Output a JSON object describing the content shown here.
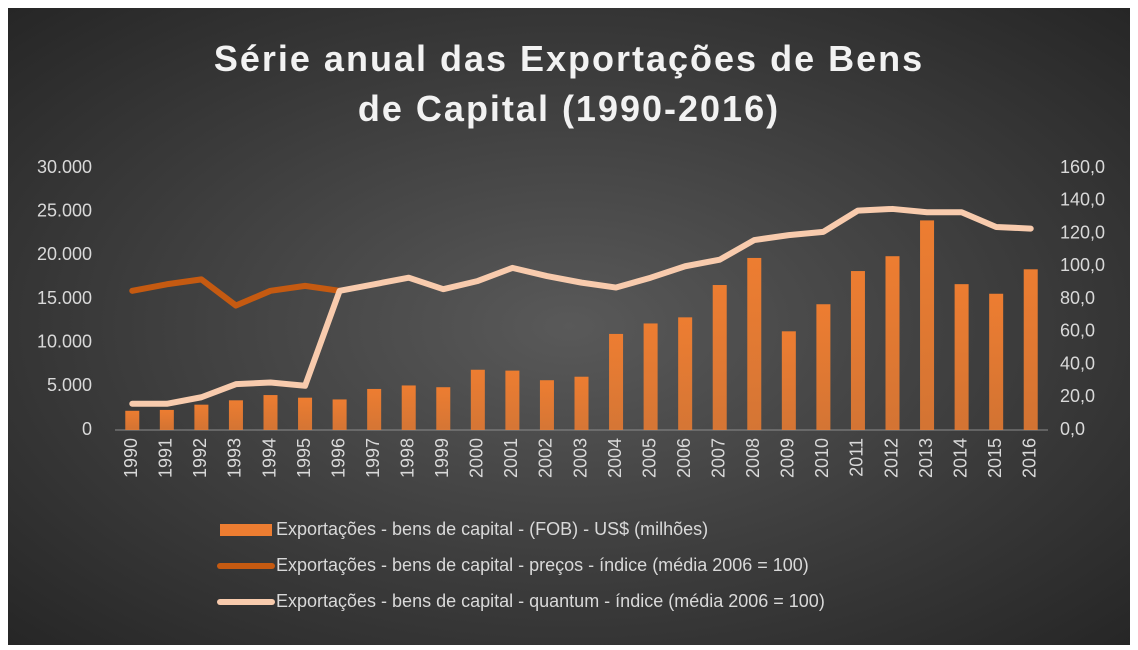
{
  "chart_data": {
    "type": "bar-line",
    "title": "Série anual das Exportações de Bens de Capital (1990-2016)",
    "categories": [
      "1990",
      "1991",
      "1992",
      "1993",
      "1994",
      "1995",
      "1996",
      "1997",
      "1998",
      "1999",
      "2000",
      "2001",
      "2002",
      "2003",
      "2004",
      "2005",
      "2006",
      "2007",
      "2008",
      "2009",
      "2010",
      "2011",
      "2012",
      "2013",
      "2014",
      "2015",
      "2016"
    ],
    "series": [
      {
        "name": "Exportações - bens de capital - (FOB) - US$ (milhões)",
        "type": "bar",
        "color": "#ed7d31",
        "values": [
          2200,
          2300,
          2900,
          3400,
          4000,
          3700,
          3500,
          4700,
          5100,
          4900,
          6900,
          6800,
          5700,
          6100,
          11000,
          12200,
          12900,
          16600,
          19700,
          11300,
          14400,
          18200,
          19900,
          24000,
          16700,
          15600,
          18400
        ]
      },
      {
        "name": "Exportações - bens de capital - preços - índice (média 2006 = 100)",
        "type": "line",
        "axis": "y2",
        "color": "#c55a11",
        "values": [
          85,
          89,
          92,
          76,
          85,
          88,
          85,
          null,
          null,
          null,
          null,
          null,
          null,
          null,
          null,
          null,
          null,
          null,
          null,
          null,
          null,
          null,
          null,
          null,
          null,
          null,
          null
        ]
      },
      {
        "name": "Exportações - bens de capital - quantum - índice (média 2006 = 100)",
        "type": "line",
        "axis": "y2",
        "color": "#f8cbad",
        "values": [
          16,
          16,
          20,
          28,
          29,
          27,
          85,
          89,
          93,
          86,
          91,
          99,
          94,
          90,
          87,
          93,
          100,
          104,
          116,
          119,
          121,
          134,
          135,
          133,
          133,
          124,
          123
        ]
      }
    ],
    "ylim": [
      0,
      30000
    ],
    "yticks": [
      0,
      {
        "value": 5000,
        "label": "5.000"
      },
      {
        "value": 10000,
        "label": "10.000"
      },
      {
        "value": 15000,
        "label": "15.000"
      },
      {
        "value": 20000,
        "label": "20.000"
      },
      {
        "value": 25000,
        "label": "25.000"
      },
      {
        "value": 30000,
        "label": "30.000"
      }
    ],
    "y2lim": [
      0,
      160
    ],
    "y2ticks": [
      {
        "value": 0,
        "label": "0,0"
      },
      {
        "value": 20,
        "label": "20,0"
      },
      {
        "value": 40,
        "label": "40,0"
      },
      {
        "value": 60,
        "label": "60,0"
      },
      {
        "value": 80,
        "label": "80,0"
      },
      {
        "value": 100,
        "label": "100,0"
      },
      {
        "value": 120,
        "label": "120,0"
      },
      {
        "value": 140,
        "label": "140,0"
      },
      {
        "value": 160,
        "label": "160,0"
      }
    ],
    "legend": "bottom"
  }
}
